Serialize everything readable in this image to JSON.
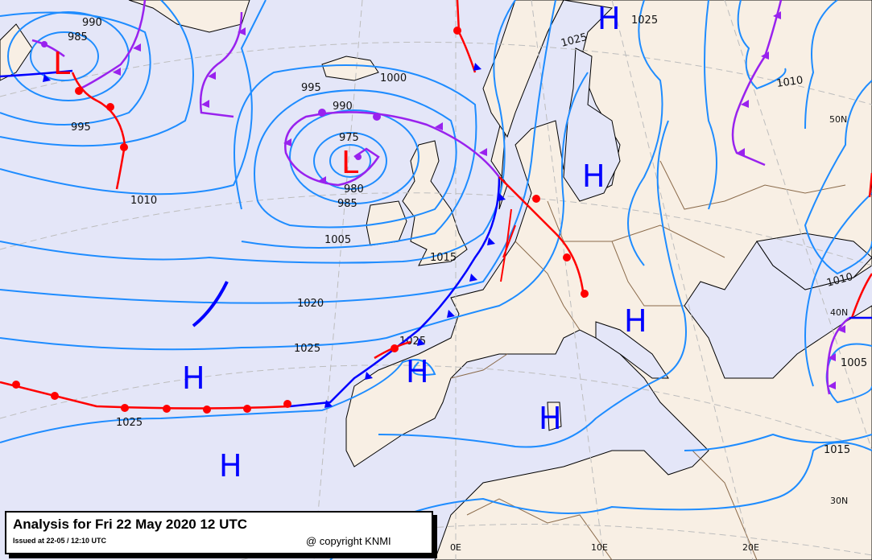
{
  "legend": {
    "title": "Analysis for Fri 22 May 2020 12 UTC",
    "issued": "Issued at 22-05 / 12:10 UTC",
    "copyright": "@ copyright KNMI"
  },
  "colors": {
    "sea": "#e4e6f8",
    "land": "#f8efe4",
    "isobar": "#1e8cff",
    "warm_front": "#ff0000",
    "cold_front": "#0000ff",
    "occluded_front": "#9922ee",
    "high": "#0000ff",
    "low": "#ff0000"
  },
  "isobar_labels": [
    "990",
    "985",
    "995",
    "1010",
    "995",
    "1000",
    "990",
    "975",
    "980",
    "985",
    "1005",
    "1015",
    "1020",
    "1025",
    "1025",
    "1025",
    "1025",
    "1025",
    "1010",
    "1010",
    "1005",
    "1015"
  ],
  "pressure_centers": {
    "high": "H",
    "low": "L"
  },
  "graticule": [
    "0E",
    "10E",
    "20E",
    "50N",
    "40N",
    "30N"
  ]
}
